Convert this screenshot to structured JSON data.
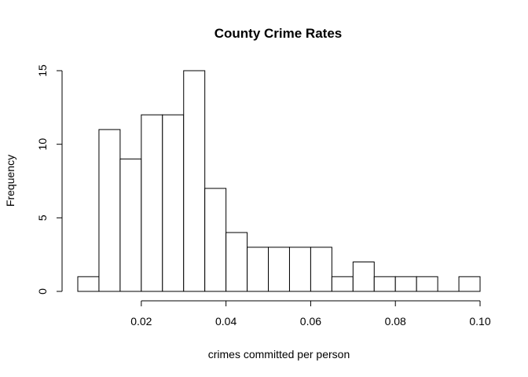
{
  "chart_data": {
    "type": "bar",
    "title": "County Crime Rates",
    "xlabel": "crimes committed per person",
    "ylabel": "Frequency",
    "bin_width": 0.005,
    "bins": [
      {
        "start": 0.005,
        "end": 0.01,
        "count": 1
      },
      {
        "start": 0.01,
        "end": 0.015,
        "count": 11
      },
      {
        "start": 0.015,
        "end": 0.02,
        "count": 9
      },
      {
        "start": 0.02,
        "end": 0.025,
        "count": 12
      },
      {
        "start": 0.025,
        "end": 0.03,
        "count": 12
      },
      {
        "start": 0.03,
        "end": 0.035,
        "count": 15
      },
      {
        "start": 0.035,
        "end": 0.04,
        "count": 7
      },
      {
        "start": 0.04,
        "end": 0.045,
        "count": 4
      },
      {
        "start": 0.045,
        "end": 0.05,
        "count": 3
      },
      {
        "start": 0.05,
        "end": 0.055,
        "count": 3
      },
      {
        "start": 0.055,
        "end": 0.06,
        "count": 3
      },
      {
        "start": 0.06,
        "end": 0.065,
        "count": 3
      },
      {
        "start": 0.065,
        "end": 0.07,
        "count": 1
      },
      {
        "start": 0.07,
        "end": 0.075,
        "count": 2
      },
      {
        "start": 0.075,
        "end": 0.08,
        "count": 1
      },
      {
        "start": 0.08,
        "end": 0.085,
        "count": 1
      },
      {
        "start": 0.085,
        "end": 0.09,
        "count": 1
      },
      {
        "start": 0.09,
        "end": 0.095,
        "count": 0
      },
      {
        "start": 0.095,
        "end": 0.1,
        "count": 1
      }
    ],
    "x_ticks": [
      0.02,
      0.04,
      0.06,
      0.08,
      0.1
    ],
    "x_tick_labels": [
      "0.02",
      "0.04",
      "0.06",
      "0.08",
      "0.10"
    ],
    "y_ticks": [
      0,
      5,
      10,
      15
    ],
    "y_tick_labels": [
      "0",
      "5",
      "10",
      "15"
    ],
    "xlim": [
      0.005,
      0.1
    ],
    "ylim": [
      0,
      15
    ],
    "grid": false,
    "legend": "none",
    "colors": {
      "bar_fill": "#ffffff",
      "bar_stroke": "#000000"
    }
  }
}
